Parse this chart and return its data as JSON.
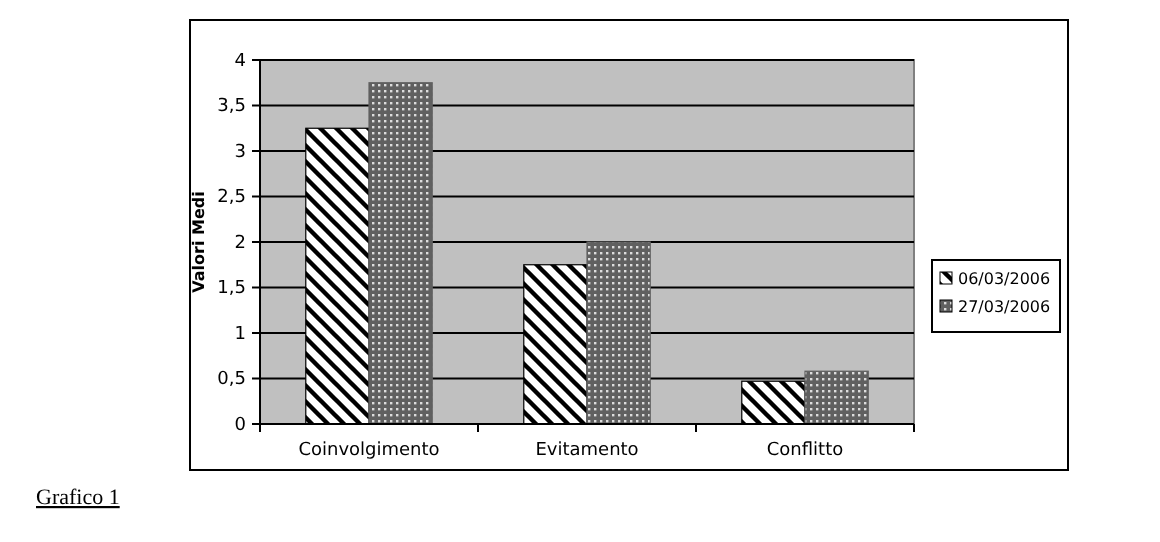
{
  "chart_data": {
    "type": "bar",
    "ylabel": "Valori Medi",
    "categories": [
      "Coinvolgimento",
      "Evitamento",
      "Conflitto"
    ],
    "series": [
      {
        "name": "06/03/2006",
        "color": "#000000",
        "values": [
          3.25,
          1.75,
          0.47
        ]
      },
      {
        "name": "27/03/2006",
        "color": "#606060",
        "values": [
          3.75,
          2.0,
          0.58
        ]
      }
    ],
    "ylim": [
      0,
      4
    ],
    "yticks": [
      0,
      {
        "value": 0.5,
        "label": "0,5"
      },
      1,
      {
        "value": 1.5,
        "label": "1,5"
      },
      2,
      {
        "value": 2.5,
        "label": "2,5"
      },
      3,
      {
        "value": 3.5,
        "label": "3,5"
      },
      4
    ],
    "grid": "y",
    "legend": "right",
    "annotations": [
      "Grafico 1"
    ]
  }
}
